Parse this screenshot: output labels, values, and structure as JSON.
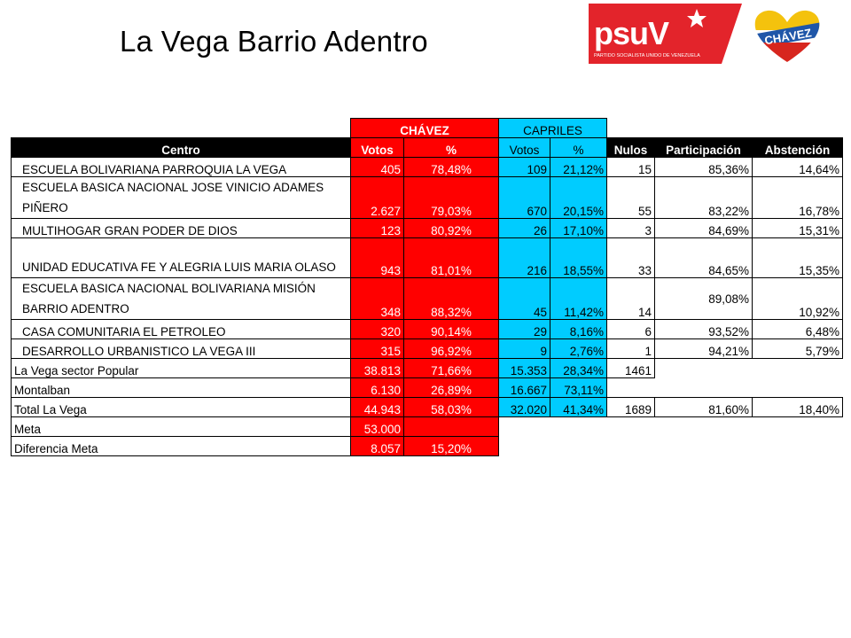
{
  "title": "La Vega Barrio Adentro",
  "logos": {
    "psuv": "PSUV",
    "psuv_subtitle": "PARTIDO SOCIALISTA UNIDO DE VENEZUELA",
    "chavez": "2012 CHÁVEZ PRESIDENTE"
  },
  "colors": {
    "chavez": "#ff0000",
    "capriles": "#00ccff",
    "header": "#000000"
  },
  "table": {
    "group_headers": {
      "chavez": "CHÁVEZ",
      "capriles": "CAPRILES"
    },
    "columns": [
      "Centro",
      "Votos",
      "%",
      "Votos",
      "%",
      "Nulos",
      "Participación",
      "Abstención"
    ],
    "centers": [
      {
        "name": "ESCUELA BOLIVARIANA PARROQUIA LA VEGA",
        "ch_votos": "405",
        "ch_pct": "78,48%",
        "ca_votos": "109",
        "ca_pct": "21,12%",
        "nulos": "15",
        "participacion": "85,36%",
        "abstencion": "14,64%"
      },
      {
        "name": "ESCUELA BASICA NACIONAL JOSE VINICIO ADAMES PIÑERO",
        "ch_votos": "2.627",
        "ch_pct": "79,03%",
        "ca_votos": "670",
        "ca_pct": "20,15%",
        "nulos": "55",
        "participacion": "83,22%",
        "abstencion": "16,78%"
      },
      {
        "name": "MULTIHOGAR GRAN PODER DE DIOS",
        "ch_votos": "123",
        "ch_pct": "80,92%",
        "ca_votos": "26",
        "ca_pct": "17,10%",
        "nulos": "3",
        "participacion": "84,69%",
        "abstencion": "15,31%"
      },
      {
        "name": "UNIDAD EDUCATIVA FE Y ALEGRIA LUIS MARIA OLASO",
        "ch_votos": "943",
        "ch_pct": "81,01%",
        "ca_votos": "216",
        "ca_pct": "18,55%",
        "nulos": "33",
        "participacion": "84,65%",
        "abstencion": "15,35%"
      },
      {
        "name": "ESCUELA BASICA NACIONAL BOLIVARIANA MISIÓN BARRIO ADENTRO",
        "ch_votos": "348",
        "ch_pct": "88,32%",
        "ca_votos": "45",
        "ca_pct": "11,42%",
        "nulos": "14",
        "participacion": "89,08%",
        "abstencion": "10,92%"
      },
      {
        "name": "CASA COMUNITARIA EL PETROLEO",
        "ch_votos": "320",
        "ch_pct": "90,14%",
        "ca_votos": "29",
        "ca_pct": "8,16%",
        "nulos": "6",
        "participacion": "93,52%",
        "abstencion": "6,48%"
      },
      {
        "name": "DESARROLLO URBANISTICO LA VEGA III",
        "ch_votos": "315",
        "ch_pct": "96,92%",
        "ca_votos": "9",
        "ca_pct": "2,76%",
        "nulos": "1",
        "participacion": "94,21%",
        "abstencion": "5,79%"
      }
    ],
    "summary": [
      {
        "name": "La Vega   sector Popular",
        "ch_votos": "38.813",
        "ch_pct": "71,66%",
        "ca_votos": "15.353",
        "ca_pct": "28,34%",
        "nulos": "1461"
      },
      {
        "name": "Montalban",
        "ch_votos": "6.130",
        "ch_pct": "26,89%",
        "ca_votos": "16.667",
        "ca_pct": "73,11%"
      },
      {
        "name": "Total La Vega",
        "ch_votos": "44.943",
        "ch_pct": "58,03%",
        "ca_votos": "32.020",
        "ca_pct": "41,34%",
        "nulos": "1689",
        "participacion": "81,60%",
        "abstencion": "18,40%"
      },
      {
        "name": "Meta",
        "ch_votos": "53.000",
        "ch_pct": ""
      },
      {
        "name": "Diferencia Meta",
        "ch_votos": "8.057",
        "ch_pct": "15,20%"
      }
    ]
  }
}
